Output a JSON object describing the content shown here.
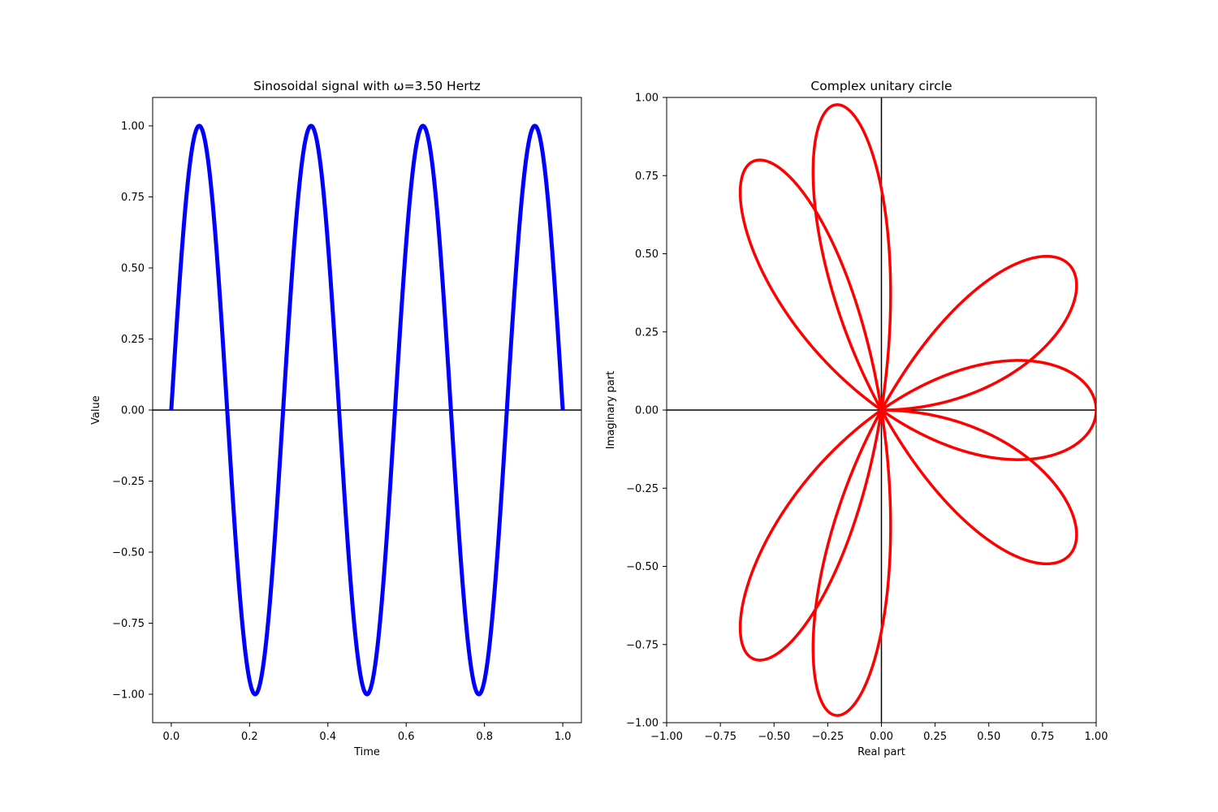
{
  "chart_data": [
    {
      "type": "line",
      "title": "Sinosoidal signal with ω=3.50 Hertz",
      "xlabel": "Time",
      "ylabel": "Value",
      "xlim": [
        -0.0475,
        1.0475
      ],
      "ylim": [
        -1.1,
        1.1
      ],
      "xticks": [
        0.0,
        0.2,
        0.4,
        0.6,
        0.8,
        1.0
      ],
      "xtick_labels": [
        "0.0",
        "0.2",
        "0.4",
        "0.6",
        "0.8",
        "1.0"
      ],
      "yticks": [
        1.0,
        0.75,
        0.5,
        0.25,
        0.0,
        -0.25,
        -0.5,
        -0.75,
        -1.0
      ],
      "ytick_labels": [
        "1.00",
        "0.75",
        "0.50",
        "0.25",
        "0.00",
        "−0.25",
        "−0.50",
        "−0.75",
        "−1.00"
      ],
      "grid": false,
      "series": [
        {
          "function": "y = sin(2π·3.5·t)",
          "frequency": 3.5,
          "t_range": [
            0,
            1
          ],
          "color": "#0000ff"
        }
      ],
      "reference_lines": [
        {
          "axis": "y",
          "value": 0,
          "color": "#000000"
        }
      ]
    },
    {
      "type": "line",
      "title": "Complex unitary circle",
      "xlabel": "Real part",
      "ylabel": "Imaginary part",
      "xlim": [
        -1.0,
        1.0
      ],
      "ylim": [
        -1.0,
        1.0
      ],
      "xticks": [
        -1.0,
        -0.75,
        -0.5,
        -0.25,
        0.0,
        0.25,
        0.5,
        0.75,
        1.0
      ],
      "xtick_labels": [
        "−1.00",
        "−0.75",
        "−0.50",
        "−0.25",
        "0.00",
        "0.25",
        "0.50",
        "0.75",
        "1.00"
      ],
      "yticks": [
        1.0,
        0.75,
        0.5,
        0.25,
        0.0,
        -0.25,
        -0.5,
        -0.75,
        -1.0
      ],
      "ytick_labels": [
        "1.00",
        "0.75",
        "0.50",
        "0.25",
        "0.00",
        "−0.25",
        "−0.50",
        "−0.75",
        "−1.00"
      ],
      "grid": false,
      "series": [
        {
          "function": "z = sin(2π·3.5·t)·e^(−2πi·t)",
          "frequency": 3.5,
          "t_range": [
            0,
            1
          ],
          "color": "#ff0000"
        }
      ],
      "reference_lines": [
        {
          "axis": "y",
          "value": 0,
          "color": "#000000"
        },
        {
          "axis": "x",
          "value": 0,
          "color": "#000000"
        }
      ]
    }
  ]
}
